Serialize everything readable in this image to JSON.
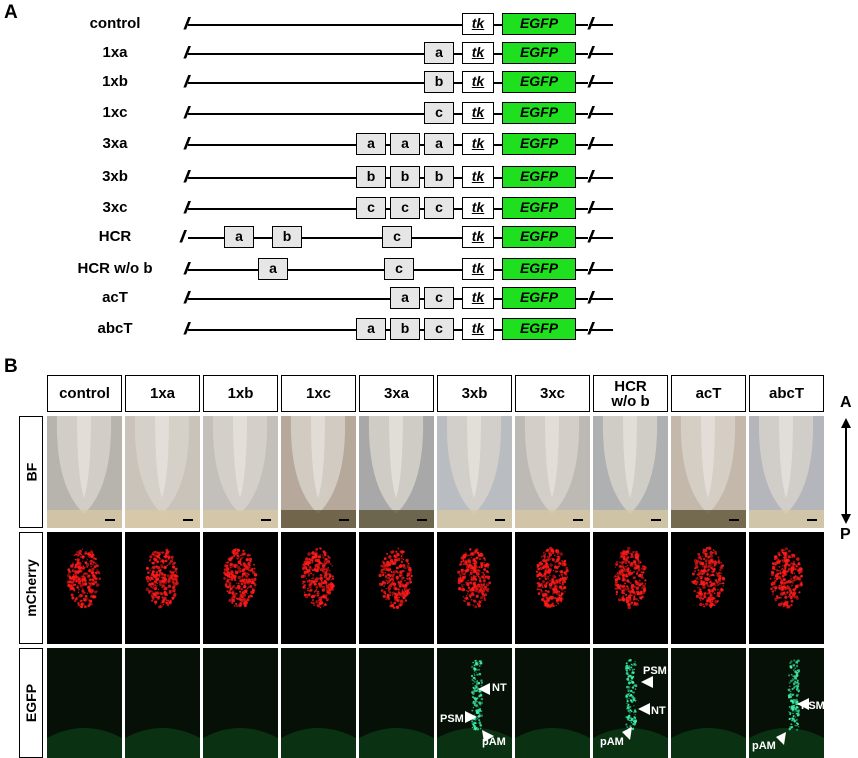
{
  "panelA": {
    "letter": "A",
    "constructs": [
      {
        "label": "control",
        "elements": []
      },
      {
        "label": "1xa",
        "elements": [
          "a"
        ]
      },
      {
        "label": "1xb",
        "elements": [
          "b"
        ]
      },
      {
        "label": "1xc",
        "elements": [
          "c"
        ]
      },
      {
        "label": "3xa",
        "elements": [
          "a",
          "a",
          "a"
        ]
      },
      {
        "label": "3xb",
        "elements": [
          "b",
          "b",
          "b"
        ]
      },
      {
        "label": "3xc",
        "elements": [
          "c",
          "c",
          "c"
        ]
      },
      {
        "label": "HCR",
        "elements": [
          "a",
          "b",
          "c"
        ]
      },
      {
        "label": "HCR w/o b",
        "elements": [
          "a",
          "c"
        ]
      },
      {
        "label": "acT",
        "elements": [
          "a",
          "c"
        ]
      },
      {
        "label": "abcT",
        "elements": [
          "a",
          "b",
          "c"
        ]
      }
    ],
    "tk_label": "tk",
    "egfp_label": "EGFP",
    "break_mark": "//",
    "colors": {
      "egfp": "#1fe01f",
      "element": "#e6e6e6"
    }
  },
  "panelB": {
    "letter": "B",
    "columns": [
      "control",
      "1xa",
      "1xb",
      "1xc",
      "3xa",
      "3xb",
      "3xc",
      "HCR w/o b",
      "acT",
      "abcT"
    ],
    "rows": [
      "BF",
      "mCherry",
      "EGFP"
    ],
    "axis": {
      "top": "A",
      "bottom": "P"
    },
    "annotations": {
      "col3xb": [
        "NT",
        "PSM",
        "pAM"
      ],
      "colHCR": [
        "PSM",
        "NT",
        "pAM"
      ],
      "colabcT": [
        "PSM",
        "pAM"
      ]
    }
  }
}
